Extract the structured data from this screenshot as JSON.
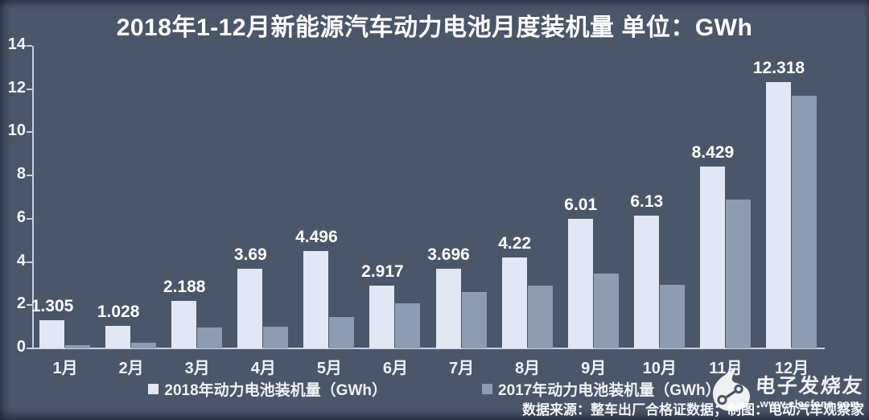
{
  "title": "2018年1-12月新能源汽车动力电池月度装机量 单位：GWh",
  "colors": {
    "background": "#4a5669",
    "bar_2018": "#e1e7f3",
    "bar_2017": "#8e9cb1",
    "axis": "#c7cfdb",
    "text": "#ffffff"
  },
  "chart_data": {
    "type": "bar",
    "title": "2018年1-12月新能源汽车动力电池月度装机量 单位：GWh",
    "categories": [
      "1月",
      "2月",
      "3月",
      "4月",
      "5月",
      "6月",
      "7月",
      "8月",
      "9月",
      "10月",
      "11月",
      "12月"
    ],
    "series": [
      {
        "name": "2018年动力电池装机量（GWh）",
        "color": "#e1e7f3",
        "values": [
          1.305,
          1.028,
          2.188,
          3.69,
          4.496,
          2.917,
          3.696,
          4.22,
          6.01,
          6.13,
          8.429,
          12.318
        ],
        "labels": [
          "1.305",
          "1.028",
          "2.188",
          "3.69",
          "4.496",
          "2.917",
          "3.696",
          "4.22",
          "6.01",
          "6.13",
          "8.429",
          "12.318"
        ]
      },
      {
        "name": "2017年动力电池装机量（GWh）",
        "color": "#8e9cb1",
        "values": [
          0.15,
          0.25,
          0.97,
          1.0,
          1.45,
          2.1,
          2.6,
          2.9,
          3.45,
          2.95,
          6.9,
          11.7
        ],
        "labels": []
      }
    ],
    "xlabel": "",
    "ylabel": "",
    "ylim": [
      0,
      14
    ],
    "yticks": [
      0,
      2,
      4,
      6,
      8,
      10,
      12,
      14
    ],
    "grid": false,
    "legend_position": "bottom"
  },
  "footer": {
    "source_note": "数据来源：整车出厂合格证数据；制图：电动汽车观察家"
  },
  "watermark": {
    "brand": "电子发烧友",
    "url": "www.elecfans.com"
  }
}
